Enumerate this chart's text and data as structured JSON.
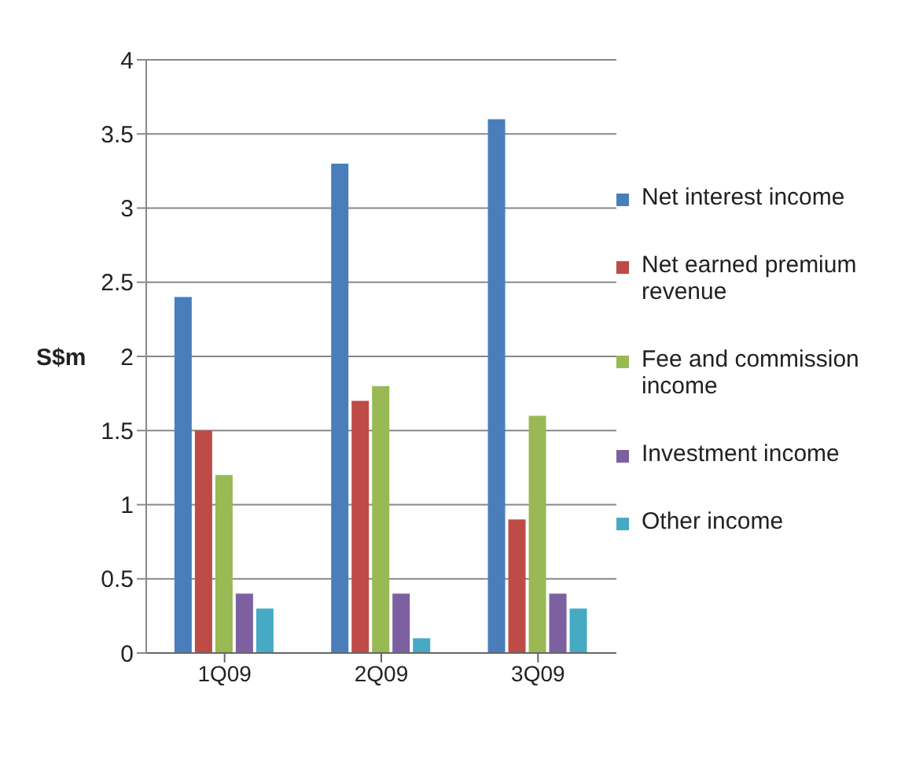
{
  "chart_data": {
    "type": "bar",
    "ylabel": "S$m",
    "categories": [
      "1Q09",
      "2Q09",
      "3Q09"
    ],
    "series": [
      {
        "name": "Net interest income",
        "color": "#4a7ebb",
        "values": [
          2.4,
          3.3,
          3.6
        ]
      },
      {
        "name": "Net earned premium revenue",
        "color": "#be4b48",
        "values": [
          1.5,
          1.7,
          0.9
        ]
      },
      {
        "name": "Fee and commission income",
        "color": "#98b954",
        "values": [
          1.2,
          1.8,
          1.6
        ]
      },
      {
        "name": "Investment income",
        "color": "#7d60a0",
        "values": [
          0.4,
          0.4,
          0.4
        ]
      },
      {
        "name": "Other income",
        "color": "#46aac5",
        "values": [
          0.3,
          0.1,
          0.3
        ]
      }
    ],
    "ylim": [
      0,
      4
    ],
    "yticks": [
      0,
      0.5,
      1,
      1.5,
      2,
      2.5,
      3,
      3.5,
      4
    ],
    "grid": "y",
    "legend": "right"
  }
}
